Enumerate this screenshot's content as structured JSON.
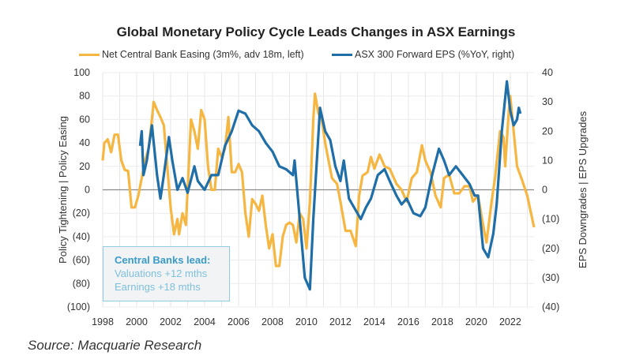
{
  "chart_data": {
    "type": "line",
    "title": "Global Monetary Policy Cycle Leads Changes in ASX Earnings",
    "xlim": [
      1998,
      2023.4
    ],
    "x_ticks": [
      "1998",
      "2000",
      "2002",
      "2004",
      "2006",
      "2008",
      "2010",
      "2012",
      "2014",
      "2016",
      "2018",
      "2020",
      "2022"
    ],
    "left_axis": {
      "label": "Policy Tightening  |  Policy Easing",
      "ylim": [
        -100,
        100
      ],
      "ticks": [
        "100",
        "80",
        "60",
        "40",
        "20",
        "0",
        "(20)",
        "(40)",
        "(60)",
        "(80)",
        "(100)"
      ]
    },
    "right_axis": {
      "label": "EPS Downgrades  |  EPS Upgrades",
      "ylim": [
        -40,
        40
      ],
      "ticks": [
        "40",
        "30",
        "20",
        "10",
        "0",
        "(10)",
        "(20)",
        "(30)",
        "(40)"
      ]
    },
    "grid": true,
    "legend_position": "top",
    "series": [
      {
        "name": "Net Central Bank Easing (3m%, adv 18m, left)",
        "axis": "left",
        "color": "#f6b642",
        "x": [
          1998.0,
          1998.1,
          1998.3,
          1998.5,
          1998.7,
          1998.9,
          1999.1,
          1999.3,
          1999.5,
          1999.7,
          1999.9,
          2000.1,
          2000.3,
          2000.5,
          2000.7,
          2000.9,
          2001.0,
          2001.2,
          2001.4,
          2001.6,
          2001.8,
          2002.0,
          2002.2,
          2002.4,
          2002.5,
          2002.7,
          2002.9,
          2003.0,
          2003.2,
          2003.4,
          2003.6,
          2003.8,
          2004.0,
          2004.2,
          2004.4,
          2004.6,
          2004.8,
          2005.0,
          2005.2,
          2005.4,
          2005.6,
          2005.8,
          2006.0,
          2006.2,
          2006.4,
          2006.6,
          2006.8,
          2007.0,
          2007.2,
          2007.4,
          2007.6,
          2007.8,
          2008.0,
          2008.2,
          2008.4,
          2008.6,
          2008.8,
          2009.0,
          2009.2,
          2009.4,
          2009.6,
          2009.8,
          2010.0,
          2010.2,
          2010.4,
          2010.5,
          2010.7,
          2010.9,
          2011.1,
          2011.3,
          2011.5,
          2011.8,
          2012.0,
          2012.3,
          2012.6,
          2012.9,
          2013.1,
          2013.3,
          2013.6,
          2013.8,
          2014.0,
          2014.3,
          2014.6,
          2014.9,
          2015.3,
          2015.6,
          2015.9,
          2016.2,
          2016.5,
          2016.8,
          2017.0,
          2017.3,
          2017.6,
          2017.9,
          2018.1,
          2018.4,
          2018.7,
          2019.0,
          2019.3,
          2019.6,
          2019.8,
          2020.1,
          2020.4,
          2020.6,
          2020.9,
          2021.1,
          2021.4,
          2021.6,
          2021.7,
          2021.9,
          2022.0,
          2022.2,
          2022.4,
          2022.7,
          2023.0,
          2023.4
        ],
        "y": [
          25,
          40,
          43,
          32,
          47,
          47,
          25,
          17,
          16,
          -15,
          -15,
          -5,
          10,
          25,
          35,
          60,
          75,
          68,
          62,
          55,
          20,
          -15,
          -38,
          -25,
          -38,
          -20,
          -30,
          0,
          60,
          50,
          35,
          68,
          60,
          20,
          0,
          0,
          35,
          28,
          35,
          62,
          15,
          15,
          22,
          15,
          -20,
          -40,
          -8,
          -12,
          -18,
          -5,
          -30,
          -50,
          -38,
          -65,
          -65,
          -40,
          -30,
          -28,
          -30,
          -45,
          -20,
          -25,
          -50,
          -10,
          60,
          82,
          65,
          60,
          40,
          25,
          10,
          5,
          -10,
          -35,
          -35,
          -48,
          -5,
          12,
          15,
          28,
          18,
          30,
          20,
          18,
          5,
          0,
          -10,
          10,
          15,
          38,
          25,
          15,
          -5,
          -15,
          10,
          13,
          -3,
          -3,
          3,
          3,
          -10,
          -5,
          -30,
          -45,
          -10,
          10,
          50,
          45,
          20,
          65,
          80,
          50,
          20,
          8,
          -5,
          -32
        ]
      },
      {
        "name": "ASX 300 Forward EPS (%YoY, right)",
        "axis": "right",
        "color": "#1f6ea8",
        "x": [
          2000.2,
          2000.3,
          2000.4,
          2000.6,
          2000.9,
          2001.2,
          2001.4,
          2001.6,
          2001.9,
          2002.1,
          2002.4,
          2002.7,
          2003.0,
          2003.4,
          2003.6,
          2004.0,
          2004.4,
          2004.8,
          2005.2,
          2005.6,
          2006.0,
          2006.4,
          2006.8,
          2007.2,
          2007.6,
          2008.0,
          2008.4,
          2008.8,
          2009.2,
          2009.3,
          2009.6,
          2009.9,
          2010.2,
          2010.4,
          2010.8,
          2011.1,
          2011.4,
          2011.7,
          2012.0,
          2012.2,
          2012.5,
          2012.9,
          2013.2,
          2013.5,
          2013.8,
          2014.2,
          2014.6,
          2014.9,
          2015.3,
          2015.6,
          2015.9,
          2016.3,
          2016.7,
          2017.0,
          2017.4,
          2017.8,
          2018.1,
          2018.4,
          2018.8,
          2019.2,
          2019.6,
          2019.9,
          2020.1,
          2020.4,
          2020.7,
          2021.0,
          2021.2,
          2021.5,
          2021.8,
          2022.0,
          2022.2,
          2022.4,
          2022.5,
          2022.6
        ],
        "y": [
          15,
          20,
          5,
          10,
          22,
          5,
          -3,
          5,
          18,
          10,
          0,
          4,
          -1,
          8,
          3,
          0,
          5,
          5,
          15,
          20,
          27,
          26,
          22,
          20,
          16,
          13,
          8,
          7,
          5,
          10,
          -10,
          -30,
          -34,
          -10,
          28,
          20,
          17,
          8,
          3,
          10,
          -3,
          -7,
          -10,
          -6,
          -3,
          5,
          7,
          3,
          -2,
          -5,
          -3,
          -8,
          -9,
          -6,
          5,
          14,
          10,
          5,
          8,
          5,
          2,
          -2,
          -2,
          -20,
          -23,
          -15,
          -5,
          20,
          37,
          27,
          22,
          24,
          28,
          26
        ]
      }
    ],
    "annotation": {
      "heading": "Central Banks lead:",
      "lines": [
        "Valuations +12 mths",
        "Earnings +18 mths"
      ]
    }
  },
  "source": "Source: Macquarie Research"
}
